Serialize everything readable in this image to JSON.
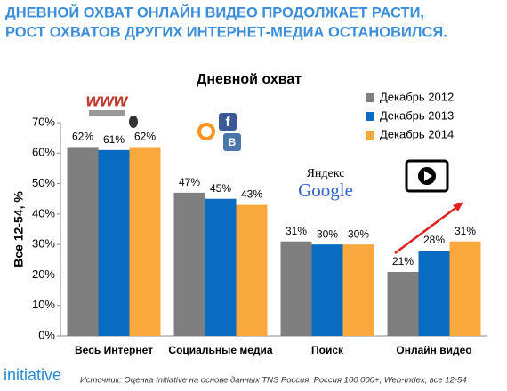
{
  "header": {
    "line1": "ДНЕВНОЙ ОХВАТ ОНЛАЙН ВИДЕО ПРОДОЛЖАЕТ РАСТИ,",
    "line2": "РОСТ ОХВАТОВ ДРУГИХ ИНТЕРНЕТ-МЕДИА ОСТАНОВИЛСЯ."
  },
  "logos": {
    "www": "www",
    "yandex": "Яндекс",
    "google": "Google",
    "facebook": "f",
    "vk": "B"
  },
  "chart_data": {
    "type": "bar",
    "title": "Дневной охват",
    "y_label": "Все 12-54, %",
    "categories": [
      "Весь Интернет",
      "Социальные медиа",
      "Поиск",
      "Онлайн видео"
    ],
    "series": [
      {
        "name": "Декабрь 2012",
        "color": "#7f7f7f",
        "values": [
          62,
          47,
          31,
          21
        ],
        "value_labels": [
          "62%",
          "47%",
          "31%",
          "21%"
        ]
      },
      {
        "name": "Декабрь 2013",
        "color": "#0a6cc0",
        "values": [
          61,
          45,
          30,
          28
        ],
        "value_labels": [
          "61%",
          "45%",
          "30%",
          "28%"
        ]
      },
      {
        "name": "Декабрь 2014",
        "color": "#f9a83e",
        "values": [
          62,
          43,
          30,
          31
        ],
        "value_labels": [
          "62%",
          "43%",
          "30%",
          "31%"
        ]
      }
    ],
    "ylim": [
      0,
      70
    ],
    "yticks": [
      {
        "value": 0,
        "label": "0%"
      },
      {
        "value": 10,
        "label": "10%"
      },
      {
        "value": 20,
        "label": "20%"
      },
      {
        "value": 30,
        "label": "30%"
      },
      {
        "value": 40,
        "label": "40%"
      },
      {
        "value": 50,
        "label": "50%"
      },
      {
        "value": 60,
        "label": "60%"
      },
      {
        "value": 70,
        "label": "70%"
      }
    ],
    "grid": false,
    "legend": "top-right"
  },
  "footer": {
    "brand": "initiative",
    "source": "Источник: Оценка Initiative на основе данных TNS Россия, Россия 100 000+, Web-Index, все 12-54"
  }
}
